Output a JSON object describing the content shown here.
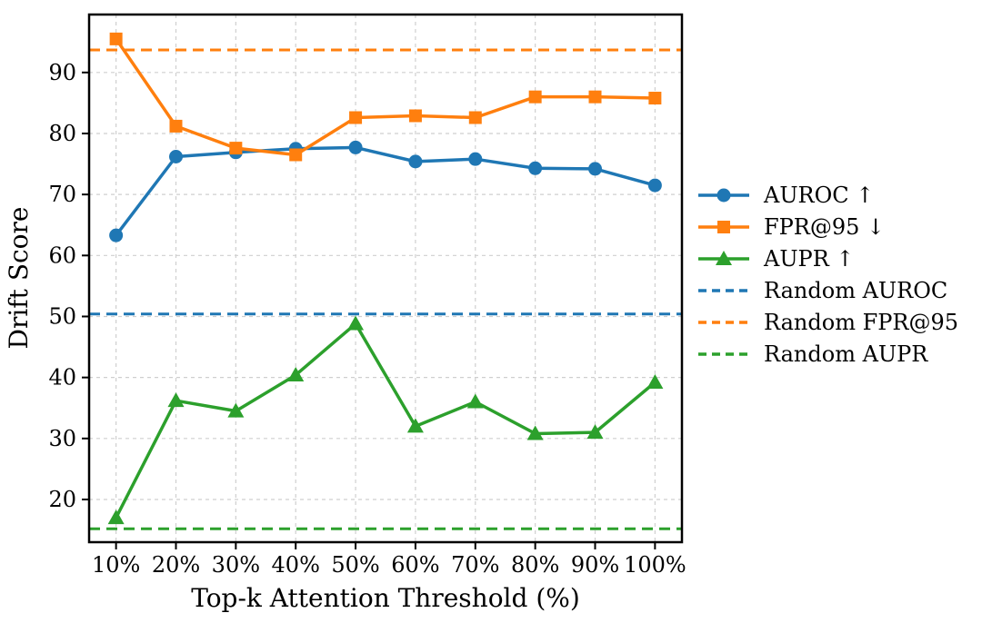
{
  "chart_data": {
    "type": "line",
    "title": "",
    "xlabel": "Top-k Attention Threshold (%)",
    "ylabel": "Drift Score",
    "x_values": [
      10,
      20,
      30,
      40,
      50,
      60,
      70,
      80,
      90,
      100
    ],
    "x_tick_labels": [
      "10%",
      "20%",
      "30%",
      "40%",
      "50%",
      "60%",
      "70%",
      "80%",
      "90%",
      "100%"
    ],
    "y_ticks": [
      20,
      30,
      40,
      50,
      60,
      70,
      80,
      90
    ],
    "xlim": [
      5.5,
      104.5
    ],
    "ylim": [
      13,
      99.5
    ],
    "grid": true,
    "grid_style": "dashed",
    "legend_position": "center-right-outside",
    "series": [
      {
        "name": "AUROC ↑",
        "slug": "auroc",
        "color": "#1f77b4",
        "marker": "circle",
        "style": "solid",
        "values": [
          63.3,
          76.2,
          76.9,
          77.5,
          77.7,
          75.4,
          75.8,
          74.3,
          74.2,
          71.5
        ]
      },
      {
        "name": "FPR@95 ↓",
        "slug": "fpr-95",
        "color": "#ff7f0e",
        "marker": "square",
        "style": "solid",
        "values": [
          95.5,
          81.2,
          77.6,
          76.5,
          82.6,
          82.9,
          82.6,
          86.0,
          86.0,
          85.8
        ]
      },
      {
        "name": "AUPR ↑",
        "slug": "aupr",
        "color": "#2ca02c",
        "marker": "triangle",
        "style": "solid",
        "values": [
          17.0,
          36.2,
          34.5,
          40.4,
          48.8,
          32.0,
          36.0,
          30.8,
          31.0,
          39.2
        ]
      }
    ],
    "baselines": [
      {
        "name": "Random AUROC",
        "slug": "random-auroc",
        "color": "#1f77b4",
        "style": "dashed",
        "value": 50.4
      },
      {
        "name": "Random FPR@95",
        "slug": "random-fpr-95",
        "color": "#ff7f0e",
        "style": "dashed",
        "value": 93.7
      },
      {
        "name": "Random AUPR",
        "slug": "random-aupr",
        "color": "#2ca02c",
        "style": "dashed",
        "value": 15.2
      }
    ],
    "colors": {
      "frame": "#000000",
      "grid": "#cfcfcf",
      "background": "#ffffff"
    }
  }
}
